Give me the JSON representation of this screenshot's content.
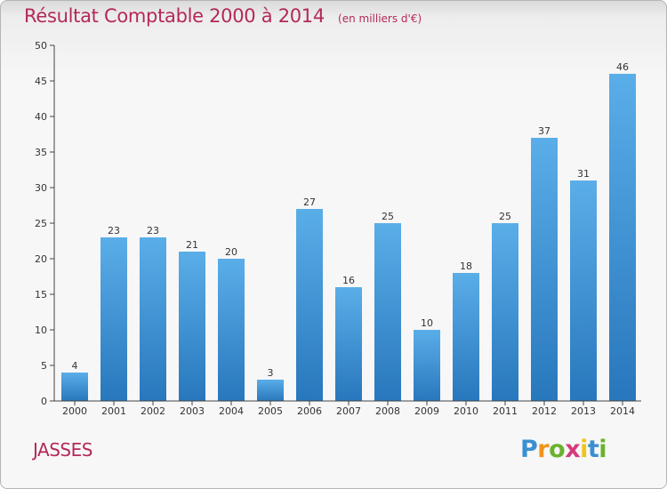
{
  "chart_data": {
    "type": "bar",
    "title": "Résultat Comptable 2000 à 2014",
    "subtitle": "(en milliers d'€)",
    "categories": [
      "2000",
      "2001",
      "2002",
      "2003",
      "2004",
      "2005",
      "2006",
      "2007",
      "2008",
      "2009",
      "2010",
      "2011",
      "2012",
      "2013",
      "2014"
    ],
    "values": [
      4,
      23,
      23,
      21,
      20,
      3,
      27,
      16,
      25,
      10,
      18,
      25,
      37,
      31,
      46
    ],
    "ylim": [
      0,
      50
    ],
    "yticks": [
      0,
      5,
      10,
      15,
      20,
      25,
      30,
      35,
      40,
      45,
      50
    ],
    "xlabel": "",
    "ylabel": "",
    "grid": false,
    "bar_color": "#3d8fd6",
    "bar_color_light": "#5aaee8",
    "bar_color_dark": "#2877bd"
  },
  "footer": {
    "commune": "JASSES",
    "logo": {
      "letters": [
        "P",
        "r",
        "o",
        "x",
        "i",
        "t",
        "i"
      ],
      "colors": [
        "#3b8fd0",
        "#f0931e",
        "#6ab22e",
        "#d63a7a",
        "#f0c419",
        "#3b8fd0",
        "#6ab22e"
      ]
    }
  },
  "colors": {
    "title": "#b4285a",
    "axis": "#444444"
  }
}
